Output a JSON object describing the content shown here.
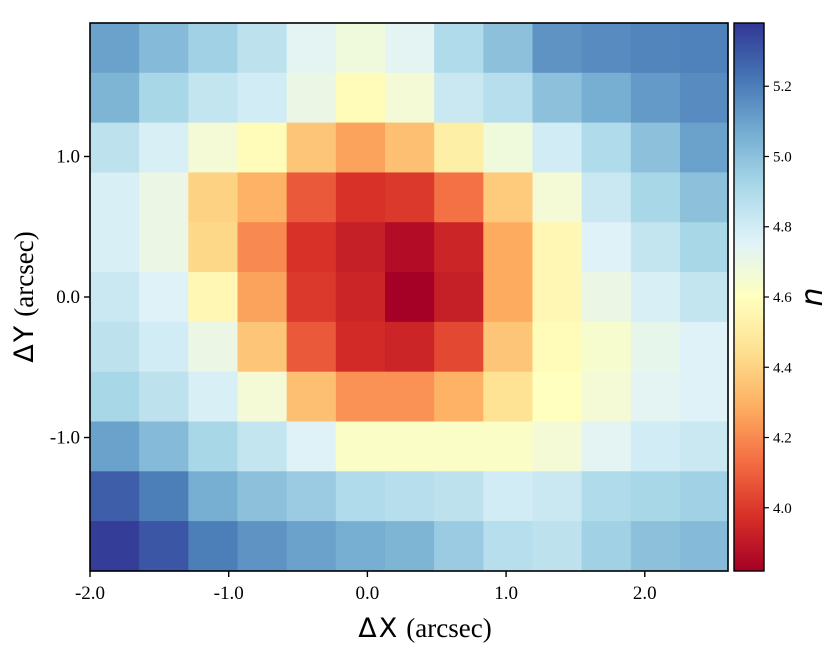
{
  "chart_data": {
    "type": "heatmap",
    "colormap": "RdYlBu",
    "xlabel": {
      "symbol": "Δ",
      "var": "X",
      "unit": "(arcsec)"
    },
    "ylabel": {
      "symbol": "Δ",
      "var": "Y",
      "unit": "(arcsec)"
    },
    "colorbar_label": "n",
    "x_ticks": [
      {
        "value": -2.0,
        "label": "-2.0"
      },
      {
        "value": -1.0,
        "label": "-1.0"
      },
      {
        "value": 0.0,
        "label": "0.0"
      },
      {
        "value": 1.0,
        "label": "1.0"
      },
      {
        "value": 2.0,
        "label": "2.0"
      }
    ],
    "y_ticks": [
      {
        "value": 1.0,
        "label": "1.0"
      },
      {
        "value": 0.0,
        "label": "0.0"
      },
      {
        "value": -1.0,
        "label": "-1.0"
      }
    ],
    "xlim": [
      -2.0,
      2.6
    ],
    "ylim": [
      -1.95,
      1.95
    ],
    "colorbar_ticks": [
      {
        "value": 4.0,
        "label": "4.0"
      },
      {
        "value": 4.2,
        "label": "4.2"
      },
      {
        "value": 4.4,
        "label": "4.4"
      },
      {
        "value": 4.6,
        "label": "4.6"
      },
      {
        "value": 4.8,
        "label": "4.8"
      },
      {
        "value": 5.0,
        "label": "5.0"
      },
      {
        "value": 5.2,
        "label": "5.2"
      }
    ],
    "vmin": 3.82,
    "vmax": 5.38,
    "n_cols": 13,
    "n_rows": 11,
    "grid_x_start": -2.0,
    "grid_y_top": 1.95,
    "cell_size": 0.3545,
    "values": [
      [
        5.1,
        5.02,
        4.94,
        4.86,
        4.74,
        4.68,
        4.74,
        4.9,
        5.0,
        5.14,
        5.16,
        5.18,
        5.19
      ],
      [
        5.04,
        4.92,
        4.84,
        4.8,
        4.7,
        4.58,
        4.66,
        4.82,
        4.88,
        5.0,
        5.06,
        5.12,
        5.16
      ],
      [
        4.86,
        4.78,
        4.66,
        4.58,
        4.36,
        4.26,
        4.34,
        4.52,
        4.68,
        4.8,
        4.9,
        5.0,
        5.1
      ],
      [
        4.78,
        4.7,
        4.4,
        4.3,
        4.08,
        3.98,
        4.0,
        4.14,
        4.38,
        4.66,
        4.82,
        4.92,
        5.0
      ],
      [
        4.78,
        4.7,
        4.42,
        4.2,
        3.98,
        3.92,
        3.86,
        3.94,
        4.28,
        4.56,
        4.76,
        4.84,
        4.92
      ],
      [
        4.82,
        4.76,
        4.56,
        4.26,
        4.0,
        3.94,
        3.82,
        3.92,
        4.28,
        4.56,
        4.7,
        4.78,
        4.84
      ],
      [
        4.86,
        4.8,
        4.7,
        4.36,
        4.08,
        3.96,
        3.94,
        4.04,
        4.36,
        4.58,
        4.64,
        4.72,
        4.76
      ],
      [
        4.92,
        4.86,
        4.78,
        4.66,
        4.34,
        4.22,
        4.22,
        4.3,
        4.46,
        4.6,
        4.66,
        4.74,
        4.76
      ],
      [
        5.1,
        5.02,
        4.92,
        4.84,
        4.76,
        4.62,
        4.62,
        4.62,
        4.62,
        4.66,
        4.74,
        4.8,
        4.82
      ],
      [
        5.28,
        5.2,
        5.06,
        5.0,
        4.96,
        4.9,
        4.88,
        4.86,
        4.8,
        4.82,
        4.9,
        4.92,
        4.94
      ],
      [
        5.36,
        5.3,
        5.2,
        5.14,
        5.1,
        5.06,
        5.04,
        4.96,
        4.88,
        4.86,
        4.94,
        5.0,
        5.02
      ]
    ]
  }
}
